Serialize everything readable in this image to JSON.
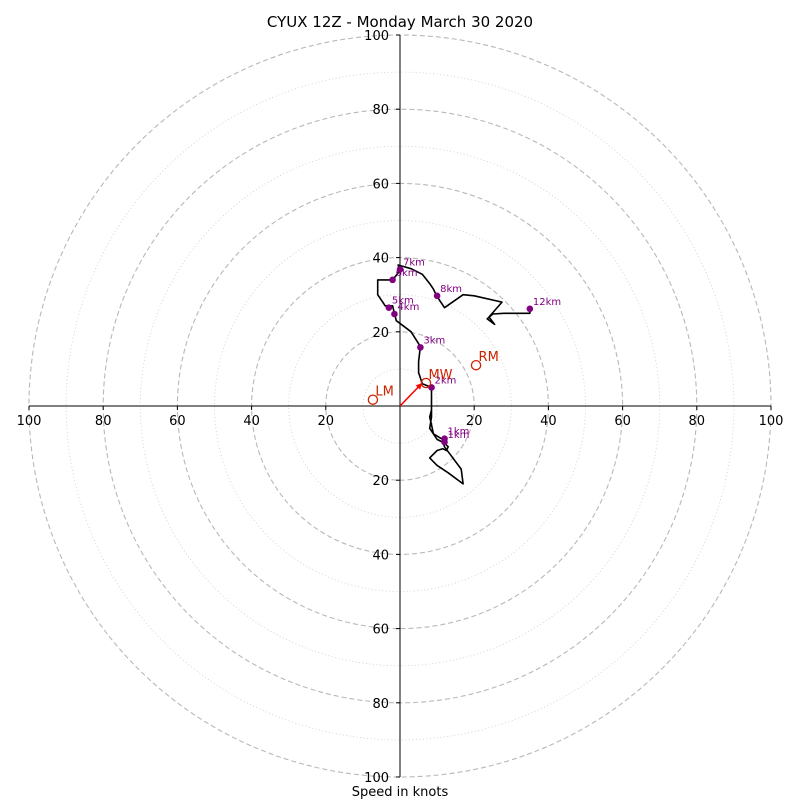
{
  "chart_data": {
    "type": "line",
    "title": "CYUX 12Z - Monday March 30 2020",
    "xlabel": "Speed in knots",
    "axis_limit": 100,
    "ring_step_major": 20,
    "ring_step_minor": 10,
    "tick_labels": {
      "left": [
        "100",
        "80",
        "60",
        "40",
        "20"
      ],
      "right": [
        "20",
        "40",
        "60",
        "80",
        "100"
      ],
      "top": [
        "20",
        "40",
        "60",
        "80",
        "100"
      ],
      "bottom": [
        "20",
        "40",
        "60",
        "80",
        "100"
      ]
    },
    "tick_values": [
      20,
      40,
      60,
      80,
      100
    ],
    "hodograph": {
      "color": "#000000",
      "points": [
        [
          8.5,
          -0.5
        ],
        [
          8.5,
          -3
        ],
        [
          8,
          -6
        ],
        [
          10,
          -9
        ],
        [
          12,
          -10
        ],
        [
          13,
          -11
        ],
        [
          12.5,
          -12
        ],
        [
          11.5,
          -11.5
        ],
        [
          10,
          -12
        ],
        [
          8,
          -14
        ],
        [
          10,
          -16
        ],
        [
          13,
          -18
        ],
        [
          17,
          -21
        ],
        [
          16.5,
          -17
        ],
        [
          12,
          -11
        ],
        [
          11.5,
          -9.5
        ],
        [
          11.5,
          -9
        ],
        [
          9,
          -7.5
        ],
        [
          8.5,
          -5
        ],
        [
          8,
          -3
        ],
        [
          8.5,
          -1
        ],
        [
          8.5,
          0.5
        ],
        [
          8.5,
          5
        ],
        [
          6,
          6
        ],
        [
          5,
          9
        ],
        [
          5,
          12
        ],
        [
          5.5,
          16
        ],
        [
          3,
          20
        ],
        [
          1,
          21.5
        ],
        [
          -1,
          23
        ],
        [
          -1.5,
          25
        ],
        [
          -2,
          27
        ],
        [
          -4,
          27
        ],
        [
          -6,
          30
        ],
        [
          -6,
          34
        ],
        [
          -2,
          34
        ],
        [
          0,
          36.5
        ],
        [
          -0.5,
          38
        ],
        [
          3,
          37
        ],
        [
          6,
          35.5
        ],
        [
          8,
          33
        ],
        [
          9,
          31.5
        ],
        [
          10,
          29.5
        ],
        [
          12,
          26.5
        ],
        [
          17,
          30
        ],
        [
          20,
          29.7
        ],
        [
          27.5,
          28
        ],
        [
          24,
          24
        ],
        [
          25.5,
          22
        ],
        [
          23.5,
          23.5
        ],
        [
          25,
          24.8
        ],
        [
          28,
          25
        ],
        [
          35,
          25
        ],
        [
          35,
          26.5
        ]
      ]
    },
    "height_markers": {
      "color": "#800080",
      "points": [
        {
          "label": "1km",
          "u": 12,
          "v": -8.8
        },
        {
          "label": "1km",
          "u": 12,
          "v": -9.7
        },
        {
          "label": "2km",
          "u": 8.5,
          "v": 5
        },
        {
          "label": "3km",
          "u": 5.5,
          "v": 15.8
        },
        {
          "label": "4km",
          "u": -1.5,
          "v": 24.8
        },
        {
          "label": "5km",
          "u": -3,
          "v": 26.5
        },
        {
          "label": "6km",
          "u": -2,
          "v": 34
        },
        {
          "label": "7km",
          "u": 0,
          "v": 36.8
        },
        {
          "label": "8km",
          "u": 10,
          "v": 29.7
        },
        {
          "label": "12km",
          "u": 35,
          "v": 26.2
        }
      ]
    },
    "storm_motion": {
      "color": "#cc2200",
      "points": [
        {
          "label": "RM",
          "u": 20.5,
          "v": 11
        },
        {
          "label": "LM",
          "u": -7.3,
          "v": 1.7
        },
        {
          "label": "MW",
          "u": 7,
          "v": 6.2
        }
      ],
      "vector": {
        "from": [
          0,
          0
        ],
        "to": [
          6,
          6.2
        ],
        "color": "#ff0000"
      }
    }
  }
}
